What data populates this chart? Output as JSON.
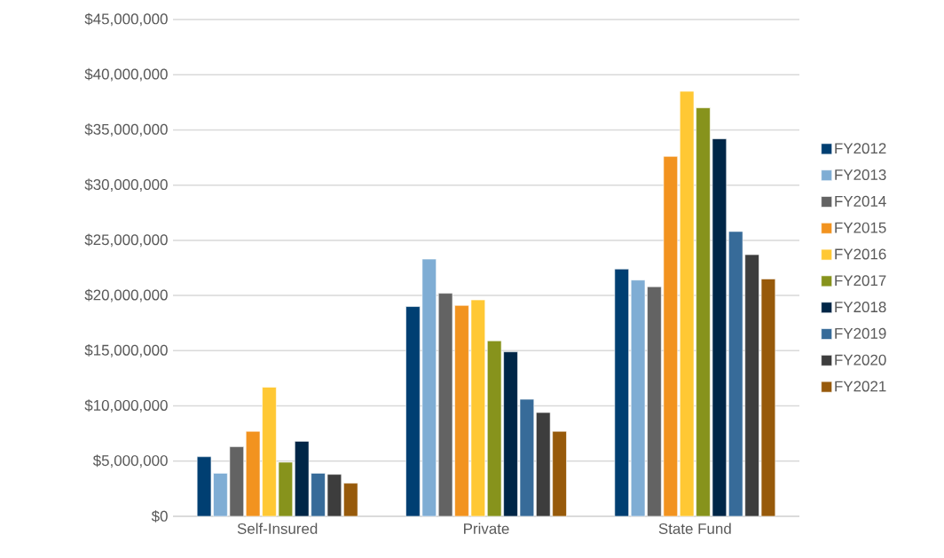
{
  "chart_data": {
    "type": "bar",
    "categories": [
      "Self-Insured",
      "Private",
      "State Fund"
    ],
    "series": [
      {
        "name": "FY2012",
        "color": "#003f72",
        "values": [
          5400000,
          19000000,
          22400000
        ]
      },
      {
        "name": "FY2013",
        "color": "#7fadd4",
        "values": [
          3900000,
          23300000,
          21400000
        ]
      },
      {
        "name": "FY2014",
        "color": "#636363",
        "values": [
          6300000,
          20200000,
          20800000
        ]
      },
      {
        "name": "FY2015",
        "color": "#f2931f",
        "values": [
          7700000,
          19100000,
          32600000
        ]
      },
      {
        "name": "FY2016",
        "color": "#ffc834",
        "values": [
          11700000,
          19600000,
          38500000
        ]
      },
      {
        "name": "FY2017",
        "color": "#87931c",
        "values": [
          4900000,
          15900000,
          37000000
        ]
      },
      {
        "name": "FY2018",
        "color": "#002647",
        "values": [
          6800000,
          14900000,
          34200000
        ]
      },
      {
        "name": "FY2019",
        "color": "#376b99",
        "values": [
          3900000,
          10600000,
          25800000
        ]
      },
      {
        "name": "FY2020",
        "color": "#3d3d3d",
        "values": [
          3800000,
          9400000,
          23700000
        ]
      },
      {
        "name": "FY2021",
        "color": "#975a0b",
        "values": [
          3000000,
          7700000,
          21500000
        ]
      }
    ],
    "ylim": [
      0,
      45000000
    ],
    "yticks": [
      {
        "value": 0,
        "label": "$0"
      },
      {
        "value": 5000000,
        "label": "$5,000,000"
      },
      {
        "value": 10000000,
        "label": "$10,000,000"
      },
      {
        "value": 15000000,
        "label": "$15,000,000"
      },
      {
        "value": 20000000,
        "label": "$20,000,000"
      },
      {
        "value": 25000000,
        "label": "$25,000,000"
      },
      {
        "value": 30000000,
        "label": "$30,000,000"
      },
      {
        "value": 35000000,
        "label": "$35,000,000"
      },
      {
        "value": 40000000,
        "label": "$40,000,000"
      },
      {
        "value": 45000000,
        "label": "$45,000,000"
      }
    ],
    "grid": "y",
    "legend": "right"
  }
}
